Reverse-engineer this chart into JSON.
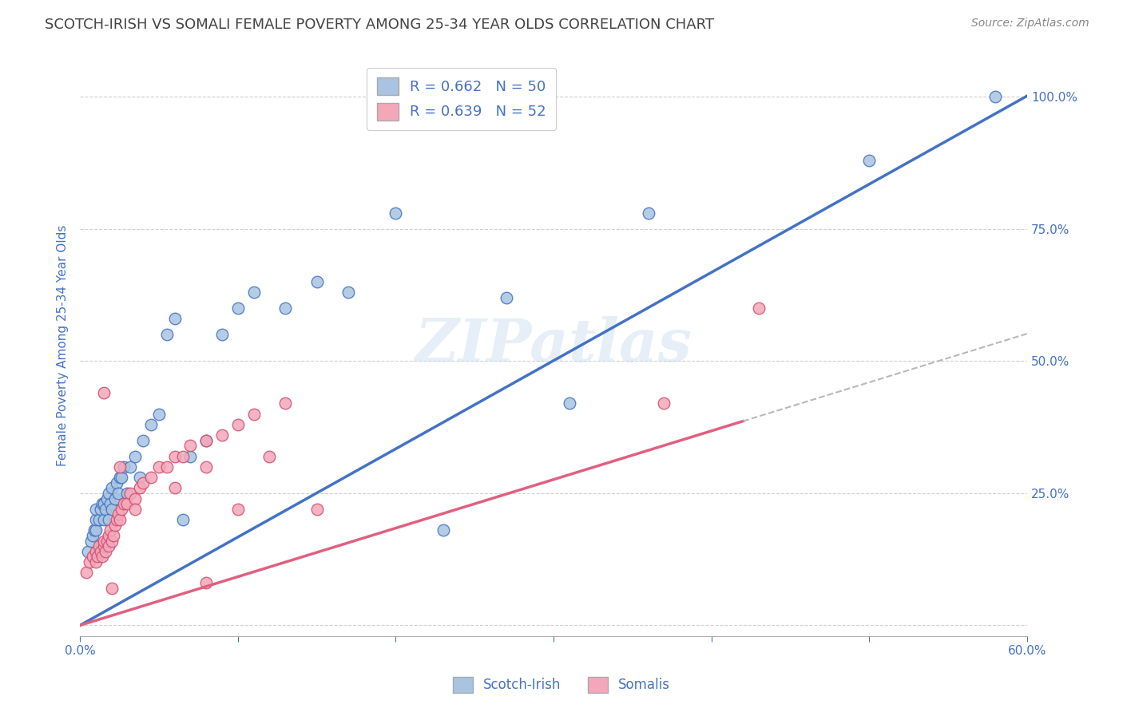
{
  "title": "SCOTCH-IRISH VS SOMALI FEMALE POVERTY AMONG 25-34 YEAR OLDS CORRELATION CHART",
  "source": "Source: ZipAtlas.com",
  "ylabel": "Female Poverty Among 25-34 Year Olds",
  "xlim": [
    0.0,
    0.6
  ],
  "ylim": [
    -0.02,
    1.08
  ],
  "xticks": [
    0.0,
    0.1,
    0.2,
    0.3,
    0.4,
    0.5,
    0.6
  ],
  "yticks": [
    0.0,
    0.25,
    0.5,
    0.75,
    1.0
  ],
  "ytick_labels": [
    "",
    "25.0%",
    "50.0%",
    "75.0%",
    "100.0%"
  ],
  "xtick_labels": [
    "0.0%",
    "",
    "",
    "",
    "",
    "",
    "60.0%"
  ],
  "blue_R": 0.662,
  "blue_N": 50,
  "pink_R": 0.639,
  "pink_N": 52,
  "blue_color": "#a8c4e0",
  "pink_color": "#f4a7b9",
  "blue_line_color": "#4472c4",
  "pink_line_color": "#e06080",
  "watermark": "ZIPatlas",
  "tick_color": "#4472c4",
  "blue_line_slope": 1.67,
  "blue_line_intercept": 0.0,
  "pink_line_slope": 0.92,
  "pink_line_intercept": 0.0,
  "scotch_irish_x": [
    0.005,
    0.007,
    0.008,
    0.009,
    0.01,
    0.01,
    0.01,
    0.012,
    0.013,
    0.014,
    0.015,
    0.015,
    0.016,
    0.017,
    0.018,
    0.018,
    0.019,
    0.02,
    0.02,
    0.022,
    0.023,
    0.024,
    0.025,
    0.026,
    0.028,
    0.03,
    0.032,
    0.035,
    0.038,
    0.04,
    0.045,
    0.05,
    0.055,
    0.06,
    0.065,
    0.07,
    0.08,
    0.09,
    0.1,
    0.11,
    0.13,
    0.15,
    0.17,
    0.2,
    0.23,
    0.27,
    0.31,
    0.36,
    0.5,
    0.58
  ],
  "scotch_irish_y": [
    0.14,
    0.16,
    0.17,
    0.18,
    0.18,
    0.2,
    0.22,
    0.2,
    0.22,
    0.23,
    0.2,
    0.23,
    0.22,
    0.24,
    0.2,
    0.25,
    0.23,
    0.22,
    0.26,
    0.24,
    0.27,
    0.25,
    0.28,
    0.28,
    0.3,
    0.25,
    0.3,
    0.32,
    0.28,
    0.35,
    0.38,
    0.4,
    0.55,
    0.58,
    0.2,
    0.32,
    0.35,
    0.55,
    0.6,
    0.63,
    0.6,
    0.65,
    0.63,
    0.78,
    0.18,
    0.62,
    0.42,
    0.78,
    0.88,
    1.0
  ],
  "somali_x": [
    0.004,
    0.006,
    0.008,
    0.01,
    0.01,
    0.011,
    0.012,
    0.013,
    0.014,
    0.015,
    0.015,
    0.016,
    0.017,
    0.018,
    0.018,
    0.019,
    0.02,
    0.021,
    0.022,
    0.023,
    0.024,
    0.025,
    0.026,
    0.028,
    0.03,
    0.032,
    0.035,
    0.038,
    0.04,
    0.045,
    0.05,
    0.055,
    0.06,
    0.065,
    0.07,
    0.08,
    0.09,
    0.1,
    0.11,
    0.13,
    0.015,
    0.025,
    0.035,
    0.02,
    0.06,
    0.08,
    0.1,
    0.12,
    0.37,
    0.43,
    0.08,
    0.15
  ],
  "somali_y": [
    0.1,
    0.12,
    0.13,
    0.12,
    0.14,
    0.13,
    0.15,
    0.14,
    0.13,
    0.15,
    0.16,
    0.14,
    0.16,
    0.17,
    0.15,
    0.18,
    0.16,
    0.17,
    0.19,
    0.2,
    0.21,
    0.2,
    0.22,
    0.23,
    0.23,
    0.25,
    0.24,
    0.26,
    0.27,
    0.28,
    0.3,
    0.3,
    0.32,
    0.32,
    0.34,
    0.35,
    0.36,
    0.38,
    0.4,
    0.42,
    0.44,
    0.3,
    0.22,
    0.07,
    0.26,
    0.08,
    0.22,
    0.32,
    0.42,
    0.6,
    0.3,
    0.22
  ]
}
